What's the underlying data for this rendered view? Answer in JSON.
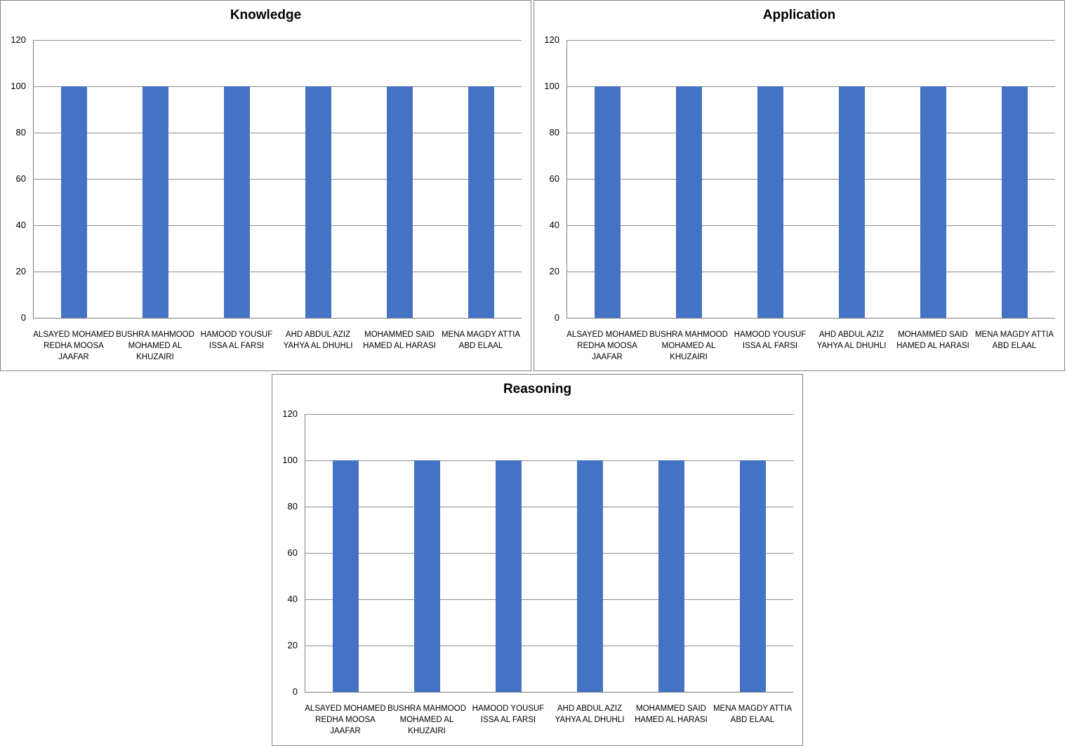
{
  "page": {
    "background_color": "#ffffff",
    "panel_border_color": "#858585"
  },
  "style": {
    "bar_color": "#4472C4",
    "gridline_color": "#8C8C8C",
    "axis_color": "#7F7F7F",
    "text_color": "#000000"
  },
  "chart_data": [
    {
      "type": "bar",
      "title": "Knowledge",
      "categories": [
        "ALSAYED MOHAMED REDHA MOOSA JAAFAR",
        "BUSHRA MAHMOOD MOHAMED AL KHUZAIRI",
        "HAMOOD YOUSUF ISSA AL FARSI",
        "AHD ABDUL  AZIZ YAHYA  AL DHUHLI",
        "MOHAMMED SAID HAMED AL HARASI",
        "MENA MAGDY ATTIA ABD  ELAAL"
      ],
      "category_lines": [
        "ALSAYED MOHAMED\nREDHA MOOSA\nJAAFAR",
        "BUSHRA MAHMOOD\nMOHAMED AL\nKHUZAIRI",
        "HAMOOD YOUSUF\nISSA AL FARSI",
        "AHD ABDUL  AZIZ\nYAHYA  AL DHUHLI",
        "MOHAMMED SAID\nHAMED AL HARASI",
        "MENA MAGDY ATTIA\nABD  ELAAL"
      ],
      "values": [
        100,
        100,
        100,
        100,
        100,
        100
      ],
      "xlabel": "",
      "ylabel": "",
      "ylim": [
        0,
        120
      ],
      "yticks": [
        0,
        20,
        40,
        60,
        80,
        100,
        120
      ],
      "grid": true,
      "legend": "none"
    },
    {
      "type": "bar",
      "title": "Application",
      "categories": [
        "ALSAYED MOHAMED REDHA MOOSA JAAFAR",
        "BUSHRA MAHMOOD MOHAMED AL KHUZAIRI",
        "HAMOOD YOUSUF ISSA AL FARSI",
        "AHD ABDUL  AZIZ YAHYA  AL DHUHLI",
        "MOHAMMED SAID HAMED AL HARASI",
        "MENA MAGDY ATTIA ABD  ELAAL"
      ],
      "category_lines": [
        "ALSAYED MOHAMED\nREDHA MOOSA\nJAAFAR",
        "BUSHRA MAHMOOD\nMOHAMED AL\nKHUZAIRI",
        "HAMOOD YOUSUF\nISSA AL FARSI",
        "AHD ABDUL  AZIZ\nYAHYA  AL DHUHLI",
        "MOHAMMED SAID\nHAMED AL HARASI",
        "MENA MAGDY ATTIA\nABD  ELAAL"
      ],
      "values": [
        100,
        100,
        100,
        100,
        100,
        100
      ],
      "xlabel": "",
      "ylabel": "",
      "ylim": [
        0,
        120
      ],
      "yticks": [
        0,
        20,
        40,
        60,
        80,
        100,
        120
      ],
      "grid": true,
      "legend": "none"
    },
    {
      "type": "bar",
      "title": "Reasoning",
      "categories": [
        "ALSAYED MOHAMED REDHA MOOSA JAAFAR",
        "BUSHRA MAHMOOD MOHAMED AL KHUZAIRI",
        "HAMOOD YOUSUF ISSA AL FARSI",
        "AHD ABDUL  AZIZ YAHYA  AL DHUHLI",
        "MOHAMMED SAID HAMED AL HARASI",
        "MENA MAGDY ATTIA ABD  ELAAL"
      ],
      "category_lines": [
        "ALSAYED MOHAMED\nREDHA MOOSA\nJAAFAR",
        "BUSHRA MAHMOOD\nMOHAMED AL\nKHUZAIRI",
        "HAMOOD YOUSUF\nISSA AL FARSI",
        "AHD ABDUL  AZIZ\nYAHYA  AL DHUHLI",
        "MOHAMMED SAID\nHAMED AL HARASI",
        "MENA MAGDY ATTIA\nABD  ELAAL"
      ],
      "values": [
        100,
        100,
        100,
        100,
        100,
        100
      ],
      "xlabel": "",
      "ylabel": "",
      "ylim": [
        0,
        120
      ],
      "yticks": [
        0,
        20,
        40,
        60,
        80,
        100,
        120
      ],
      "grid": true,
      "legend": "none"
    }
  ]
}
